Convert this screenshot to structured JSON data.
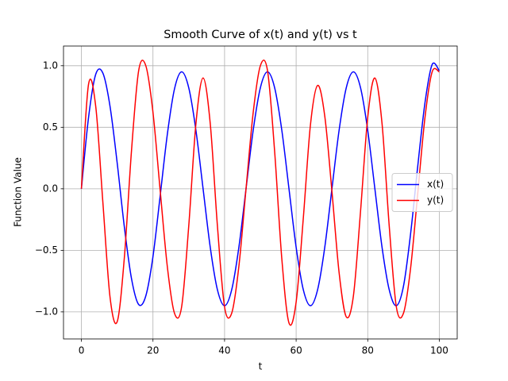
{
  "chart_data": {
    "type": "line",
    "title": "Smooth Curve of x(t) and y(t) vs t",
    "xlabel": "t",
    "ylabel": "Function Value",
    "x": [
      0,
      2,
      4,
      6,
      8,
      10,
      12,
      14,
      16,
      18,
      20,
      22,
      24,
      26,
      28,
      30,
      32,
      34,
      36,
      38,
      40,
      42,
      44,
      46,
      48,
      50,
      52,
      54,
      56,
      58,
      60,
      62,
      64,
      66,
      68,
      70,
      72,
      74,
      76,
      78,
      80,
      82,
      84,
      86,
      88,
      90,
      92,
      94,
      96,
      98,
      100
    ],
    "series": [
      {
        "name": "x(t)",
        "color": "#0000ff",
        "values": [
          0,
          0.58,
          0.93,
          0.94,
          0.67,
          0.21,
          -0.31,
          -0.73,
          -0.94,
          -0.87,
          -0.55,
          -0.06,
          0.44,
          0.81,
          0.95,
          0.82,
          0.475,
          0,
          -0.475,
          -0.82,
          -0.95,
          -0.82,
          -0.475,
          0,
          0.475,
          0.82,
          0.95,
          0.82,
          0.475,
          0,
          -0.475,
          -0.82,
          -0.95,
          -0.82,
          -0.475,
          0,
          0.475,
          0.82,
          0.95,
          0.82,
          0.475,
          0,
          -0.475,
          -0.82,
          -0.95,
          -0.79,
          -0.36,
          0.19,
          0.7,
          1.01,
          0.96
        ]
      },
      {
        "name": "y(t)",
        "color": "#ff0000",
        "values": [
          0,
          0.85,
          0.67,
          -0.11,
          -0.88,
          -1.08,
          -0.56,
          0.31,
          0.96,
          1.0,
          0.62,
          -0.01,
          -0.63,
          -1.01,
          -0.96,
          -0.3,
          0.53,
          0.9,
          0.53,
          -0.3,
          -0.96,
          -1.01,
          -0.63,
          0,
          0.62,
          1.0,
          0.96,
          0.3,
          -0.57,
          -1.09,
          -0.92,
          -0.24,
          0.52,
          0.84,
          0.59,
          -0.02,
          -0.68,
          -1.04,
          -0.87,
          -0.18,
          0.58,
          0.9,
          0.53,
          -0.3,
          -0.96,
          -1.01,
          -0.64,
          -0.03,
          0.58,
          0.95,
          0.95
        ]
      }
    ],
    "xlim": [
      -5,
      105
    ],
    "ylim": [
      -1.22,
      1.16
    ],
    "xticks": [
      0,
      20,
      40,
      60,
      80,
      100
    ],
    "yticks": [
      {
        "value": -1.0,
        "label": "−1.0"
      },
      {
        "value": -0.5,
        "label": "−0.5"
      },
      {
        "value": 0,
        "label": "0.0"
      },
      {
        "value": 0.5,
        "label": "0.5"
      },
      {
        "value": 1.0,
        "label": "1.0"
      }
    ],
    "grid": true,
    "legend": "center right"
  }
}
